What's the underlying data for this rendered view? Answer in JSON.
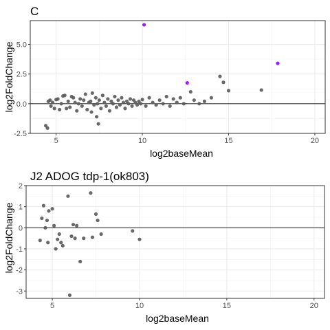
{
  "chart_data": [
    {
      "type": "scatter",
      "title": "C",
      "xlabel": "log2baseMean",
      "ylabel": "log2FoldChange",
      "xlim": [
        3.5,
        20.6
      ],
      "ylim": [
        -2.5,
        7.0
      ],
      "xticks": [
        5,
        10,
        15,
        20
      ],
      "xtick_labels": [
        "5",
        "10",
        "15",
        "20"
      ],
      "yticks": [
        -2.5,
        0.0,
        2.5,
        5.0
      ],
      "ytick_labels": [
        "-2.5",
        "0.0",
        "2.5",
        "5.0"
      ],
      "grid": true,
      "hline": 0,
      "colors": {
        "default": "#595959",
        "highlight": "#a020f0",
        "line": "#333333"
      },
      "highlighted": [
        {
          "x": 10.1,
          "y": 6.65
        },
        {
          "x": 12.6,
          "y": 1.75
        },
        {
          "x": 17.85,
          "y": 3.4
        }
      ],
      "points": [
        {
          "x": 4.4,
          "y": -1.85
        },
        {
          "x": 4.5,
          "y": -2.05
        },
        {
          "x": 4.55,
          "y": 0.2
        },
        {
          "x": 4.65,
          "y": 0.3
        },
        {
          "x": 4.7,
          "y": -0.2
        },
        {
          "x": 4.8,
          "y": 0.1
        },
        {
          "x": 4.9,
          "y": -0.4
        },
        {
          "x": 5.0,
          "y": 0.35
        },
        {
          "x": 5.1,
          "y": 0.4
        },
        {
          "x": 5.2,
          "y": -0.5
        },
        {
          "x": 5.3,
          "y": 0.0
        },
        {
          "x": 5.4,
          "y": 0.65
        },
        {
          "x": 5.5,
          "y": 0.7
        },
        {
          "x": 5.6,
          "y": -0.4
        },
        {
          "x": 5.7,
          "y": 0.2
        },
        {
          "x": 5.8,
          "y": -0.3
        },
        {
          "x": 5.9,
          "y": 0.6
        },
        {
          "x": 6.0,
          "y": 0.5
        },
        {
          "x": 6.1,
          "y": 0.1
        },
        {
          "x": 6.2,
          "y": -0.6
        },
        {
          "x": 6.3,
          "y": 0.0
        },
        {
          "x": 6.4,
          "y": 0.4
        },
        {
          "x": 6.5,
          "y": -0.2
        },
        {
          "x": 6.6,
          "y": 0.3
        },
        {
          "x": 6.7,
          "y": 0.8
        },
        {
          "x": 6.8,
          "y": -0.5
        },
        {
          "x": 6.9,
          "y": 0.1
        },
        {
          "x": 7.0,
          "y": 0.2
        },
        {
          "x": 7.05,
          "y": -0.7
        },
        {
          "x": 7.1,
          "y": 0.9
        },
        {
          "x": 7.2,
          "y": -0.1
        },
        {
          "x": 7.3,
          "y": 0.5
        },
        {
          "x": 7.35,
          "y": -1.1
        },
        {
          "x": 7.4,
          "y": 0.0
        },
        {
          "x": 7.45,
          "y": -1.7
        },
        {
          "x": 7.5,
          "y": 0.3
        },
        {
          "x": 7.6,
          "y": -0.4
        },
        {
          "x": 7.7,
          "y": 0.7
        },
        {
          "x": 7.8,
          "y": 0.1
        },
        {
          "x": 7.9,
          "y": -0.2
        },
        {
          "x": 8.0,
          "y": 0.4
        },
        {
          "x": 8.1,
          "y": -0.6
        },
        {
          "x": 8.2,
          "y": 0.2
        },
        {
          "x": 8.3,
          "y": 0.0
        },
        {
          "x": 8.4,
          "y": 0.6
        },
        {
          "x": 8.5,
          "y": -0.3
        },
        {
          "x": 8.6,
          "y": 0.3
        },
        {
          "x": 8.7,
          "y": -0.1
        },
        {
          "x": 8.8,
          "y": 0.5
        },
        {
          "x": 8.9,
          "y": 0.1
        },
        {
          "x": 9.0,
          "y": -0.4
        },
        {
          "x": 9.1,
          "y": 0.2
        },
        {
          "x": 9.2,
          "y": 0.0
        },
        {
          "x": 9.3,
          "y": 0.4
        },
        {
          "x": 9.4,
          "y": -0.2
        },
        {
          "x": 9.5,
          "y": 0.3
        },
        {
          "x": 9.6,
          "y": 0.1
        },
        {
          "x": 9.7,
          "y": -0.1
        },
        {
          "x": 9.8,
          "y": 0.2
        },
        {
          "x": 9.9,
          "y": 0.0
        },
        {
          "x": 10.0,
          "y": 0.35
        },
        {
          "x": 10.2,
          "y": -0.2
        },
        {
          "x": 10.4,
          "y": 0.5
        },
        {
          "x": 10.6,
          "y": 0.1
        },
        {
          "x": 10.8,
          "y": -0.1
        },
        {
          "x": 11.0,
          "y": 0.3
        },
        {
          "x": 11.2,
          "y": 0.0
        },
        {
          "x": 11.4,
          "y": 0.6
        },
        {
          "x": 11.6,
          "y": -0.2
        },
        {
          "x": 11.8,
          "y": 0.4
        },
        {
          "x": 12.0,
          "y": 0.1
        },
        {
          "x": 12.2,
          "y": 0.5
        },
        {
          "x": 12.4,
          "y": 0.0
        },
        {
          "x": 12.8,
          "y": 1.0
        },
        {
          "x": 13.0,
          "y": 0.3
        },
        {
          "x": 13.3,
          "y": 0.0
        },
        {
          "x": 13.6,
          "y": 0.2
        },
        {
          "x": 14.0,
          "y": 0.5
        },
        {
          "x": 14.5,
          "y": 2.3
        },
        {
          "x": 14.7,
          "y": 1.8
        },
        {
          "x": 15.0,
          "y": 1.1
        },
        {
          "x": 16.9,
          "y": 1.15
        }
      ]
    },
    {
      "type": "scatter",
      "title": "J2 ADOG tdp-1(ok803)",
      "xlabel": "log2baseMean",
      "ylabel": "log2FoldChange",
      "xlim": [
        3.5,
        20.6
      ],
      "ylim": [
        -3.35,
        2.0
      ],
      "xticks": [
        5,
        10,
        15,
        20
      ],
      "xtick_labels": [
        "5",
        "10",
        "15",
        "20"
      ],
      "yticks": [
        -3,
        -2,
        -1,
        0,
        1,
        2
      ],
      "ytick_labels": [
        "-3",
        "-2",
        "-1",
        "0",
        "1",
        "2"
      ],
      "grid": true,
      "hline": 0,
      "colors": {
        "default": "#595959",
        "line": "#333333"
      },
      "points": [
        {
          "x": 4.3,
          "y": -0.6
        },
        {
          "x": 4.4,
          "y": 0.45
        },
        {
          "x": 4.5,
          "y": 1.05
        },
        {
          "x": 4.6,
          "y": 0.0
        },
        {
          "x": 4.7,
          "y": 0.35
        },
        {
          "x": 4.75,
          "y": -0.7
        },
        {
          "x": 4.8,
          "y": 0.8
        },
        {
          "x": 5.0,
          "y": 0.9
        },
        {
          "x": 5.1,
          "y": 0.1
        },
        {
          "x": 5.2,
          "y": -1.0
        },
        {
          "x": 5.3,
          "y": -0.55
        },
        {
          "x": 5.4,
          "y": -0.3
        },
        {
          "x": 5.5,
          "y": -0.7
        },
        {
          "x": 5.6,
          "y": -0.85
        },
        {
          "x": 5.9,
          "y": 1.5
        },
        {
          "x": 6.0,
          "y": -3.2
        },
        {
          "x": 6.1,
          "y": -0.4
        },
        {
          "x": 6.2,
          "y": 0.15
        },
        {
          "x": 6.3,
          "y": -0.5
        },
        {
          "x": 6.4,
          "y": 0.1
        },
        {
          "x": 6.6,
          "y": -1.6
        },
        {
          "x": 6.8,
          "y": -0.5
        },
        {
          "x": 7.2,
          "y": 1.65
        },
        {
          "x": 7.3,
          "y": -0.45
        },
        {
          "x": 7.5,
          "y": 0.65
        },
        {
          "x": 7.6,
          "y": 0.35
        },
        {
          "x": 7.8,
          "y": -0.3
        },
        {
          "x": 9.6,
          "y": -0.15
        },
        {
          "x": 10.0,
          "y": -0.55
        }
      ]
    }
  ]
}
